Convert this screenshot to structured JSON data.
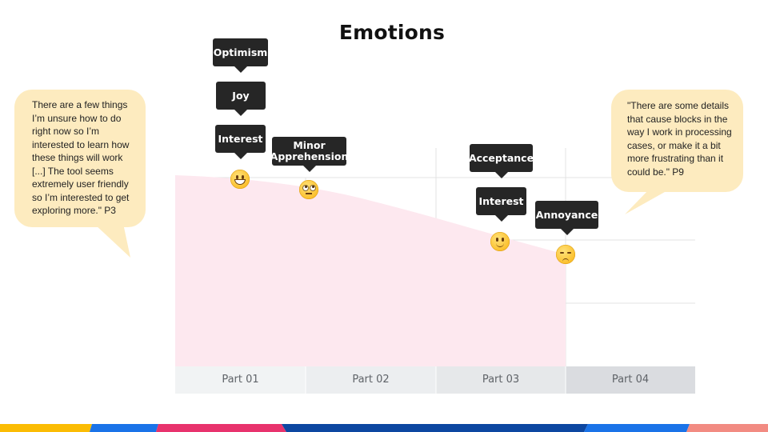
{
  "title": "Emotions",
  "quotes": {
    "left": "There are a few things I’m unsure how to do right now so I’m interested to learn how these things will work [...] The tool seems extremely user friendly so I’m interested to get exploring more.\" P3",
    "right": "\"There are some details that cause blocks in the way I work in processing cases, or make it a bit more frustrating than it could be.\" P9"
  },
  "chart_data": {
    "type": "area",
    "categories": [
      "Part 01",
      "Part 02",
      "Part 03",
      "Part 04"
    ],
    "fill_color": "#fde8ef",
    "emotions": [
      {
        "part": "Part 01",
        "labels": [
          "Optimism",
          "Joy",
          "Interest"
        ],
        "emoji": "grinning-face-icon"
      },
      {
        "part": "Part 02",
        "labels": [
          "Minor\nApprehension"
        ],
        "emoji": "eye-roll-face-icon"
      },
      {
        "part": "Part 03",
        "labels": [
          "Acceptance",
          "Interest"
        ],
        "emoji": "slight-smile-face-icon"
      },
      {
        "part": "Part 04",
        "labels": [
          "Annoyance"
        ],
        "emoji": "unamused-face-icon"
      }
    ]
  },
  "colors": {
    "stripe": [
      "#fbbc04",
      "#1a73e8",
      "#e8336d",
      "#0d47a1",
      "#1a73e8",
      "#f28b82"
    ]
  }
}
